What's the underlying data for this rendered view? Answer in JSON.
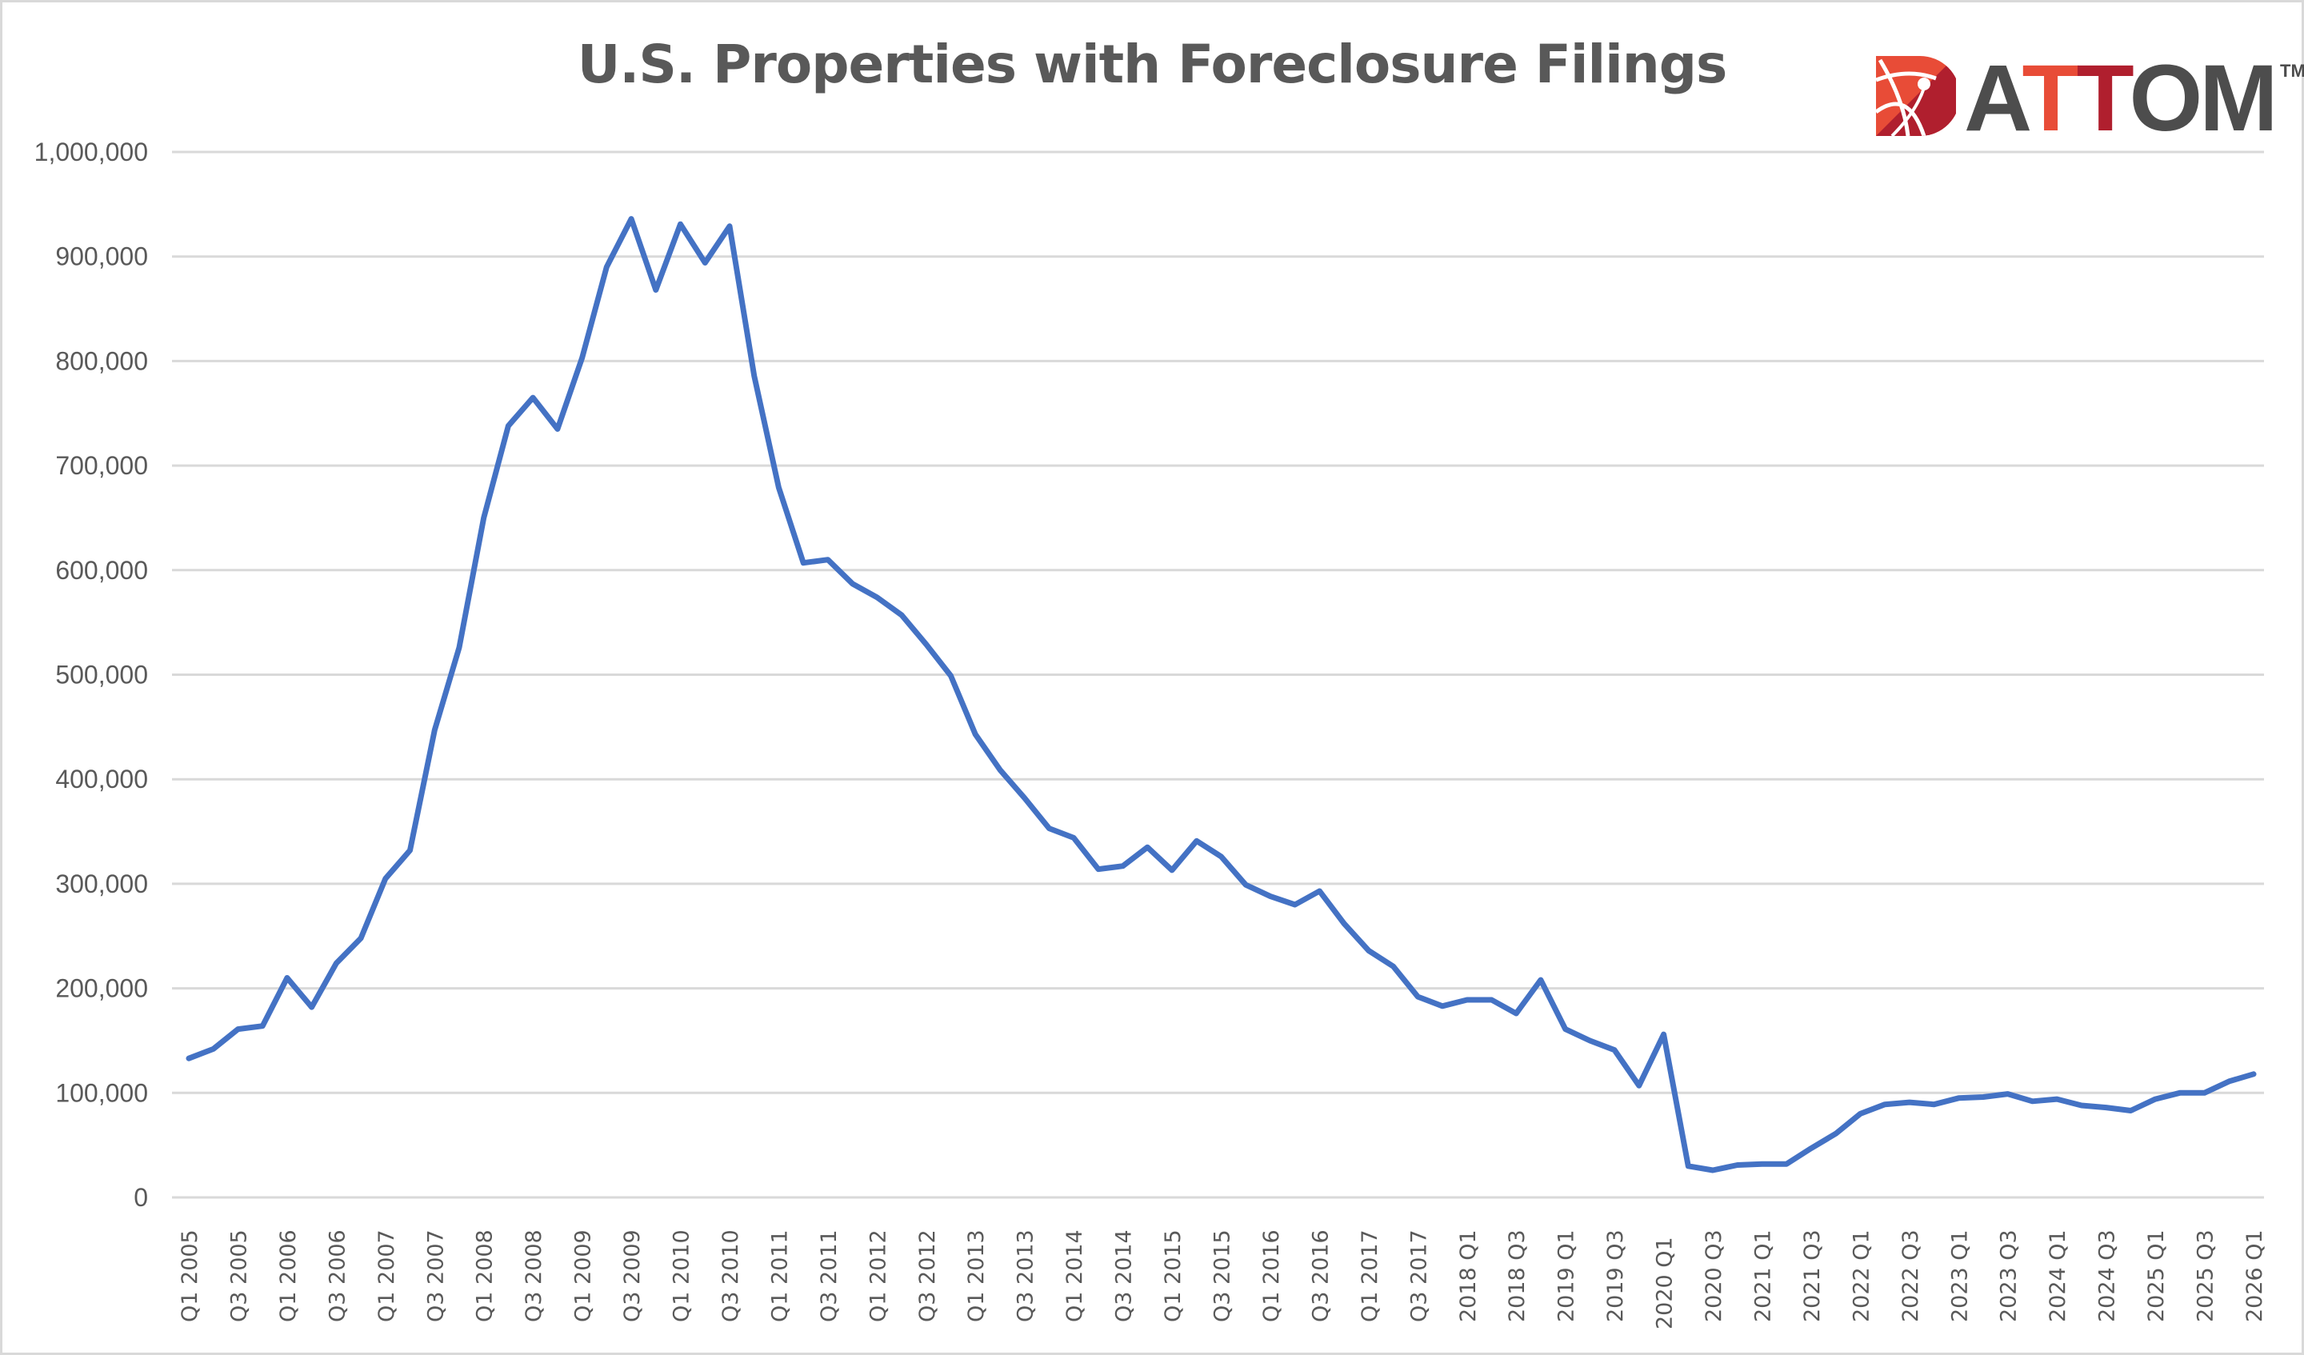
{
  "header": {
    "title": "U.S. Properties with Foreclosure Filings",
    "logo": {
      "a": "A",
      "t1": "T",
      "t2": "T",
      "om": "OM",
      "tm": "TM"
    }
  },
  "colors": {
    "line": "#4472c4",
    "grid": "#d9d9d9",
    "text": "#595959",
    "logo_red_light": "#e84c37",
    "logo_red_dark": "#b01f2e",
    "logo_gray": "#4d4d4d"
  },
  "chart_data": {
    "type": "line",
    "title": "U.S. Properties with Foreclosure Filings",
    "xlabel": "",
    "ylabel": "",
    "ylim": [
      0,
      1000000
    ],
    "yticks": [
      "0",
      "100,000",
      "200,000",
      "300,000",
      "400,000",
      "500,000",
      "600,000",
      "700,000",
      "800,000",
      "900,000",
      "1,000,000"
    ],
    "grid": true,
    "legend": null,
    "x_tick_labels": [
      "Q1 2005",
      "Q3 2005",
      "Q1 2006",
      "Q3 2006",
      "Q1 2007",
      "Q3 2007",
      "Q1 2008",
      "Q3 2008",
      "Q1 2009",
      "Q3 2009",
      "Q1 2010",
      "Q3 2010",
      "Q1 2011",
      "Q3 2011",
      "Q1 2012",
      "Q3 2012",
      "Q1 2013",
      "Q3 2013",
      "Q1 2014",
      "Q3 2014",
      "Q1 2015",
      "Q3 2015",
      "Q1 2016",
      "Q3 2016",
      "Q1 2017",
      "Q3 2017",
      "2018 Q1",
      "2018 Q3",
      "2019 Q1",
      "2019 Q3",
      "2020 Q1",
      "2020 Q3",
      "2021 Q1",
      "2021 Q3",
      "2022 Q1",
      "2022 Q3",
      "2023 Q1",
      "2023 Q3",
      "2024 Q1",
      "2024 Q3",
      "2025 Q1",
      "2025 Q3",
      "2026 Q1"
    ],
    "x": [
      "Q1 2005",
      "Q2 2005",
      "Q3 2005",
      "Q4 2005",
      "Q1 2006",
      "Q2 2006",
      "Q3 2006",
      "Q4 2006",
      "Q1 2007",
      "Q2 2007",
      "Q3 2007",
      "Q4 2007",
      "Q1 2008",
      "Q2 2008",
      "Q3 2008",
      "Q4 2008",
      "Q1 2009",
      "Q2 2009",
      "Q3 2009",
      "Q4 2009",
      "Q1 2010",
      "Q2 2010",
      "Q3 2010",
      "Q4 2010",
      "Q1 2011",
      "Q2 2011",
      "Q3 2011",
      "Q4 2011",
      "Q1 2012",
      "Q2 2012",
      "Q3 2012",
      "Q4 2012",
      "Q1 2013",
      "Q2 2013",
      "Q3 2013",
      "Q4 2013",
      "Q1 2014",
      "Q2 2014",
      "Q3 2014",
      "Q4 2014",
      "Q1 2015",
      "Q2 2015",
      "Q3 2015",
      "Q4 2015",
      "Q1 2016",
      "Q2 2016",
      "Q3 2016",
      "Q4 2016",
      "Q1 2017",
      "Q2 2017",
      "Q3 2017",
      "Q4 2017",
      "2018 Q1",
      "2018 Q2",
      "2018 Q3",
      "2018 Q4",
      "2019 Q1",
      "2019 Q2",
      "2019 Q3",
      "2019 Q4",
      "2020 Q1",
      "2020 Q2",
      "2020 Q3",
      "2020 Q4",
      "2021 Q1",
      "2021 Q2",
      "2021 Q3",
      "2021 Q4",
      "2022 Q1",
      "2022 Q2",
      "2022 Q3",
      "2022 Q4",
      "2023 Q1",
      "2023 Q2",
      "2023 Q3",
      "2023 Q4",
      "2024 Q1",
      "2024 Q2",
      "2024 Q3",
      "2024 Q4",
      "2025 Q1",
      "2025 Q2",
      "2025 Q3",
      "2025 Q4",
      "2026 Q1"
    ],
    "series": [
      {
        "name": "Properties with Foreclosure Filings",
        "values": [
          133000,
          142000,
          161000,
          164000,
          210000,
          182000,
          224000,
          248000,
          305000,
          332000,
          447000,
          526000,
          650000,
          738000,
          765000,
          735000,
          803000,
          890000,
          936000,
          868000,
          931000,
          894000,
          929000,
          786000,
          679000,
          607000,
          610000,
          587000,
          574000,
          557000,
          529000,
          499000,
          443000,
          409000,
          382000,
          353000,
          344000,
          314000,
          317000,
          335000,
          313000,
          341000,
          326000,
          299000,
          288000,
          280000,
          293000,
          262000,
          236000,
          221000,
          192000,
          183000,
          189000,
          189000,
          176000,
          208000,
          161000,
          150000,
          141000,
          107000,
          156000,
          30000,
          26000,
          31000,
          32000,
          32000,
          47000,
          61000,
          80000,
          89000,
          91000,
          89000,
          95000,
          96000,
          99000,
          92000,
          94000,
          88000,
          86000,
          83000,
          94000,
          100000,
          100000,
          111000,
          118000
        ]
      }
    ]
  }
}
